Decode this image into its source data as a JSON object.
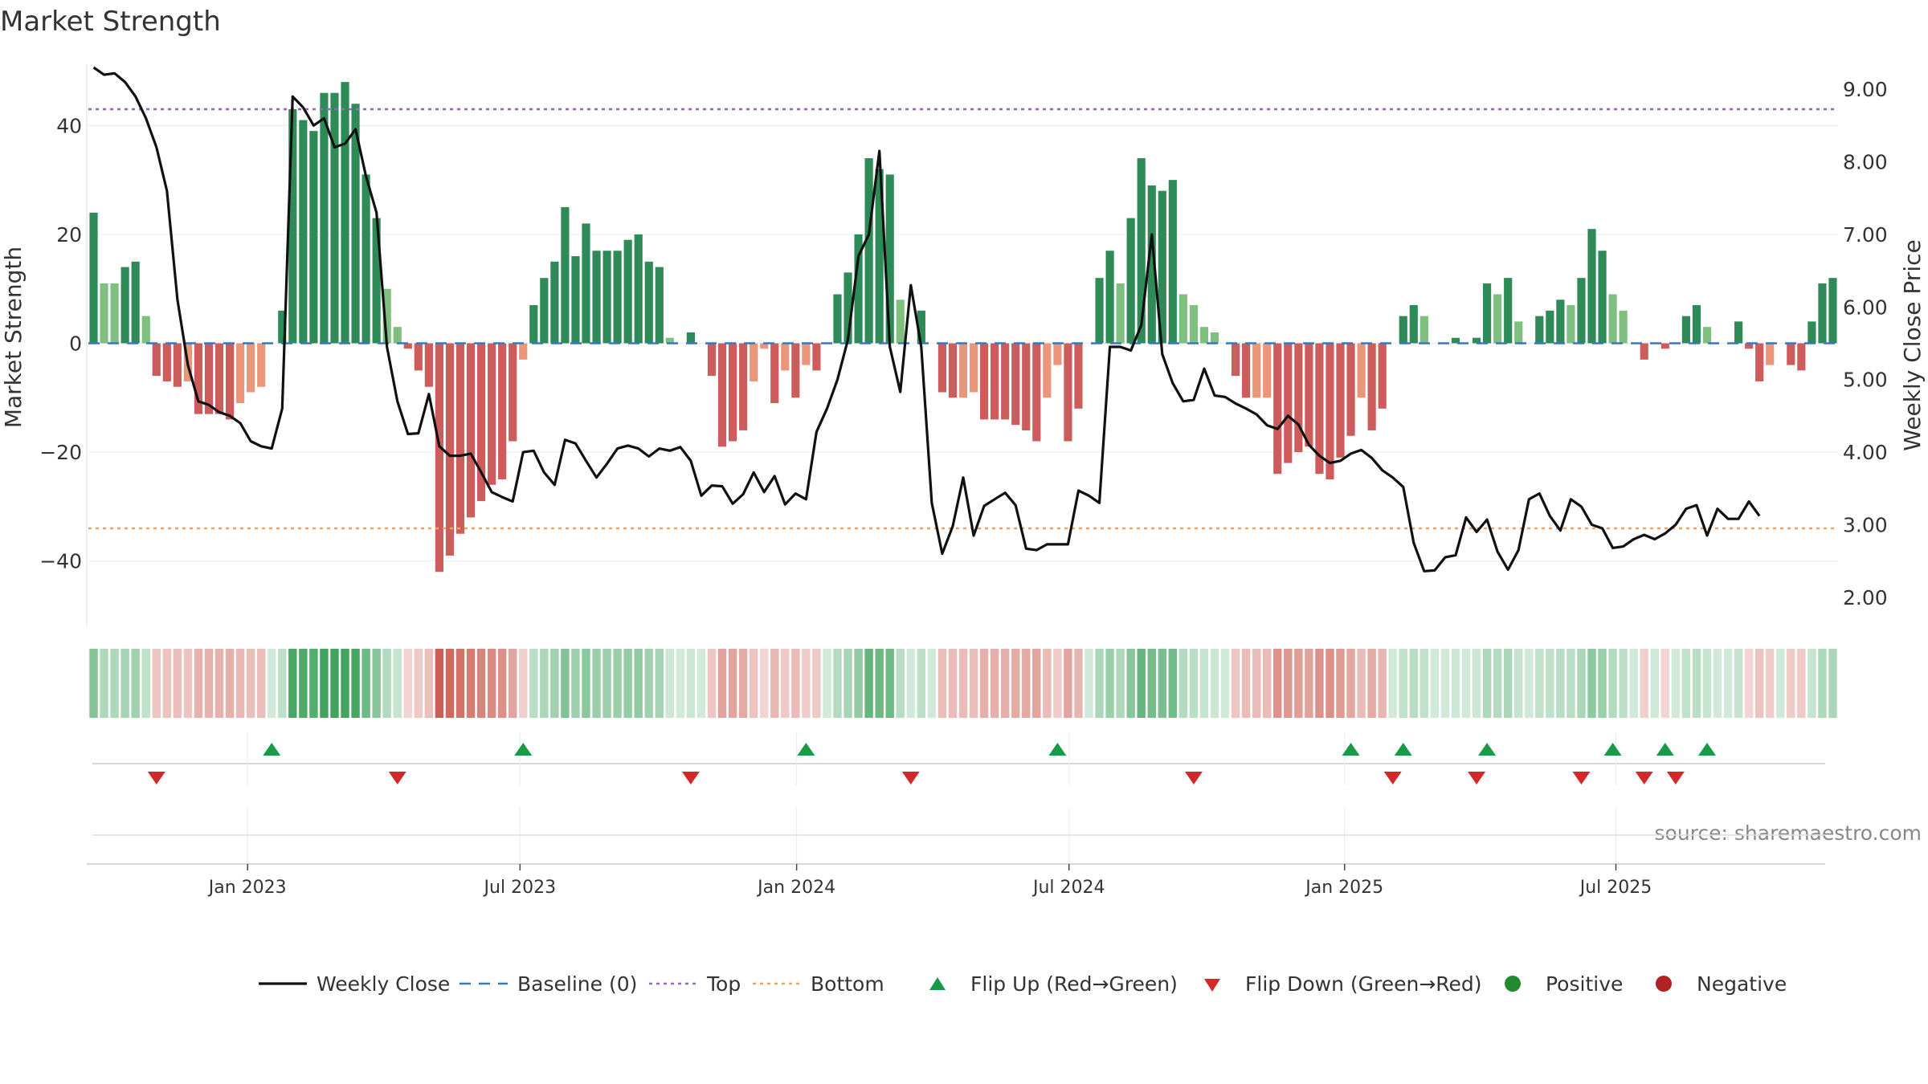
{
  "chart_data": {
    "type": "bar",
    "title": "Market Strength",
    "ylabel": "Market Strength",
    "y2label": "Weekly Close Price",
    "ylim": [
      -52,
      52
    ],
    "y2lim": [
      1.6,
      9.4
    ],
    "yticks": [
      -40,
      -20,
      0,
      20,
      40
    ],
    "yticklabels": [
      "−40",
      "−20",
      "0",
      "20",
      "40"
    ],
    "y2ticks": [
      2,
      3,
      4,
      5,
      6,
      7,
      8,
      9
    ],
    "y2ticklabels": [
      "2.00",
      "3.00",
      "4.00",
      "5.00",
      "6.00",
      "7.00",
      "8.00",
      "9.00"
    ],
    "xticks": [
      {
        "label": "Jan 2023",
        "week": 15.2
      },
      {
        "label": "Jul 2023",
        "week": 41.2
      },
      {
        "label": "Jan 2024",
        "week": 67.6
      },
      {
        "label": "Jul 2024",
        "week": 93.6
      },
      {
        "label": "Jan 2025",
        "week": 119.9
      },
      {
        "label": "Jul 2025",
        "week": 145.8
      }
    ],
    "top_level": 43,
    "bottom_level": -34,
    "source": "source: sharemaestro.com",
    "strength": [
      24,
      11,
      11,
      14,
      15,
      5,
      -6,
      -7,
      -8,
      -7,
      -13,
      -13,
      -13,
      -14,
      -11,
      -9,
      -8,
      0,
      6,
      43,
      41,
      39,
      46,
      46,
      48,
      44,
      31,
      23,
      10,
      3,
      -1,
      -5,
      -8,
      -42,
      -39,
      -35,
      -32,
      -29,
      -26,
      -25,
      -18,
      -3,
      7,
      12,
      15,
      25,
      16,
      22,
      17,
      17,
      17,
      19,
      20,
      15,
      14,
      1,
      0,
      2,
      0,
      -6,
      -19,
      -18,
      -16,
      -7,
      -1,
      -11,
      -5,
      -10,
      -4,
      -5,
      0,
      9,
      13,
      20,
      34,
      32,
      31,
      8,
      0,
      6,
      0,
      -9,
      -10,
      -10,
      -9,
      -14,
      -14,
      -14,
      -15,
      -16,
      -18,
      -10,
      -4,
      -18,
      -12,
      0,
      12,
      17,
      11,
      23,
      34,
      29,
      28,
      30,
      9,
      7,
      3,
      2,
      0,
      -6,
      -10,
      -10,
      -10,
      -24,
      -22,
      -20,
      -19,
      -24,
      -25,
      -21,
      -17,
      -10,
      -16,
      -12,
      0,
      5,
      7,
      5,
      0,
      0,
      1,
      0,
      1,
      11,
      9,
      12,
      4,
      0,
      5,
      6,
      8,
      7,
      12,
      21,
      17,
      9,
      6,
      0,
      -3,
      0,
      -1,
      0,
      5,
      7,
      3,
      0,
      0,
      4,
      -1,
      -7,
      -4,
      0,
      -4,
      -5,
      4,
      11,
      12
    ],
    "close": [
      9.3,
      9.2,
      9.22,
      9.1,
      8.9,
      8.6,
      8.2,
      7.6,
      6.1,
      5.2,
      4.7,
      4.65,
      4.55,
      4.5,
      4.4,
      4.15,
      4.08,
      4.05,
      4.6,
      8.9,
      8.75,
      8.5,
      8.6,
      8.2,
      8.25,
      8.45,
      7.8,
      7.3,
      5.45,
      4.7,
      4.25,
      4.26,
      4.8,
      4.08,
      3.95,
      3.95,
      3.98,
      3.72,
      3.45,
      3.38,
      3.32,
      4.0,
      4.02,
      3.72,
      3.55,
      4.17,
      4.12,
      3.88,
      3.65,
      3.84,
      4.05,
      4.09,
      4.05,
      3.94,
      4.05,
      4.02,
      4.07,
      3.88,
      3.4,
      3.54,
      3.53,
      3.29,
      3.42,
      3.72,
      3.45,
      3.67,
      3.28,
      3.43,
      3.35,
      4.28,
      4.6,
      5.0,
      5.55,
      6.7,
      7.0,
      8.15,
      5.45,
      4.83,
      6.3,
      5.45,
      3.3,
      2.6,
      2.98,
      3.65,
      2.85,
      3.26,
      3.35,
      3.44,
      3.27,
      2.67,
      2.65,
      2.73,
      2.73,
      2.73,
      3.47,
      3.4,
      3.3,
      5.45,
      5.45,
      5.4,
      5.75,
      7.0,
      5.35,
      4.95,
      4.7,
      4.72,
      5.15,
      4.78,
      4.76,
      4.67,
      4.6,
      4.52,
      4.37,
      4.32,
      4.5,
      4.38,
      4.1,
      3.95,
      3.85,
      3.88,
      3.98,
      4.03,
      3.92,
      3.75,
      3.65,
      3.52,
      2.75,
      2.36,
      2.37,
      2.55,
      2.58,
      3.1,
      2.9,
      3.07,
      2.63,
      2.38,
      2.65,
      3.35,
      3.43,
      3.12,
      2.92,
      3.35,
      3.25,
      3.0,
      2.95,
      2.68,
      2.7,
      2.8,
      2.86,
      2.8,
      2.88,
      3.0,
      3.22,
      3.27,
      2.85,
      3.22,
      3.08,
      3.08,
      3.32,
      3.12
    ],
    "flips_up_weeks": [
      17,
      41,
      68,
      92,
      120,
      125,
      133,
      145,
      150,
      154
    ],
    "flips_down_weeks": [
      6,
      29,
      57,
      78,
      105,
      124,
      132,
      142,
      148,
      151
    ],
    "legend": [
      {
        "label": "Weekly Close",
        "kind": "line-solid",
        "color": "#111111"
      },
      {
        "label": "Baseline (0)",
        "kind": "line-dash",
        "color": "#3a78b5"
      },
      {
        "label": "Top",
        "kind": "line-dot",
        "color": "#9467bd"
      },
      {
        "label": "Bottom",
        "kind": "line-dot",
        "color": "#f0a060"
      },
      {
        "label": "Flip Up (Red→Green)",
        "kind": "tri-up",
        "color": "#1a9a46"
      },
      {
        "label": "Flip Down (Green→Red)",
        "kind": "tri-down",
        "color": "#d62728"
      },
      {
        "label": "Positive",
        "kind": "dot",
        "color": "#1f8a2e"
      },
      {
        "label": "Negative",
        "kind": "dot",
        "color": "#b22222"
      }
    ],
    "colors": {
      "pos_strong": "#2e8b57",
      "pos_weak": "#7fbf7f",
      "neg_strong": "#cd5c5c",
      "neg_weak": "#e9967a",
      "close_line": "#111111",
      "baseline": "#3a78b5",
      "top": "#9467bd",
      "bottom": "#f0a060",
      "flip_up": "#1a9a46",
      "flip_down": "#d62728"
    }
  }
}
